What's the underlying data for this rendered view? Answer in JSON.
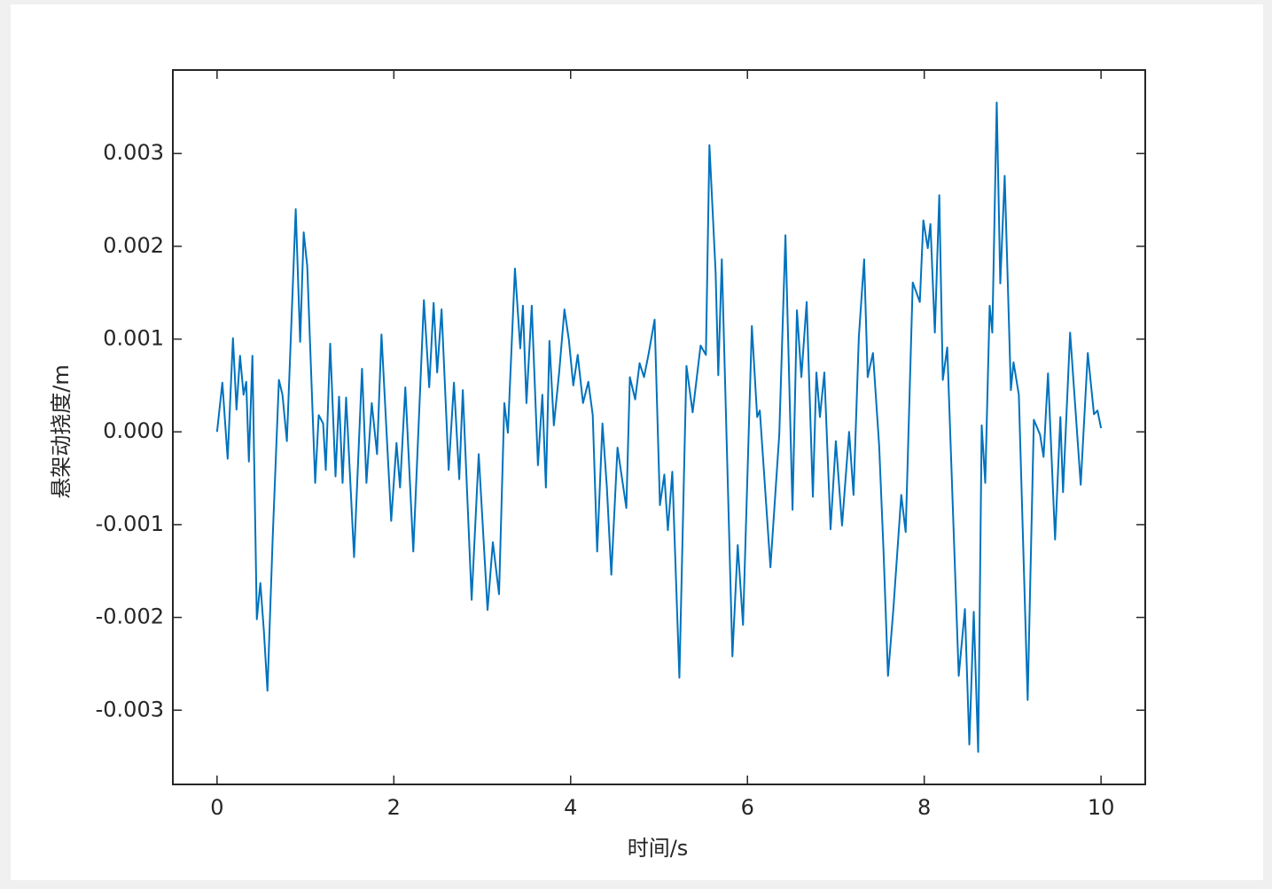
{
  "chart_data": {
    "type": "line",
    "xlabel": "时间/s",
    "ylabel": "悬架动挠度/m",
    "color": "#0072bd",
    "box": true,
    "xlim": [
      -0.5,
      10.5
    ],
    "xticks": [
      0,
      2,
      4,
      6,
      8,
      10
    ],
    "ylim": [
      -0.0038,
      0.0039
    ],
    "yticks": [
      -0.003,
      -0.002,
      -0.001,
      {
        "value": 0,
        "label": "0.000"
      },
      0.001,
      0.002,
      0.003
    ],
    "x": [
      0,
      0.06,
      0.12,
      0.18,
      0.22,
      0.26,
      0.3,
      0.33,
      0.36,
      0.4,
      0.45,
      0.49,
      0.53,
      0.57,
      0.63,
      0.7,
      0.74,
      0.79,
      0.89,
      0.94,
      0.98,
      1.02,
      1.11,
      1.15,
      1.2,
      1.23,
      1.28,
      1.34,
      1.38,
      1.42,
      1.46,
      1.55,
      1.64,
      1.69,
      1.75,
      1.81,
      1.86,
      1.97,
      2.03,
      2.07,
      2.13,
      2.22,
      2.34,
      2.4,
      2.45,
      2.49,
      2.54,
      2.62,
      2.68,
      2.74,
      2.78,
      2.88,
      2.96,
      3.06,
      3.12,
      3.19,
      3.25,
      3.29,
      3.37,
      3.43,
      3.46,
      3.5,
      3.56,
      3.63,
      3.68,
      3.72,
      3.76,
      3.81,
      3.87,
      3.93,
      3.98,
      4.03,
      4.08,
      4.14,
      4.2,
      4.25,
      4.3,
      4.36,
      4.41,
      4.46,
      4.53,
      4.63,
      4.67,
      4.73,
      4.78,
      4.83,
      4.88,
      4.95,
      5.01,
      5.06,
      5.1,
      5.15,
      5.23,
      5.31,
      5.38,
      5.47,
      5.53,
      5.57,
      5.64,
      5.67,
      5.71,
      5.83,
      5.89,
      5.95,
      6.05,
      6.11,
      6.14,
      6.26,
      6.36,
      6.43,
      6.51,
      6.56,
      6.61,
      6.67,
      6.74,
      6.78,
      6.82,
      6.87,
      6.94,
      7.0,
      7.07,
      7.15,
      7.2,
      7.26,
      7.32,
      7.36,
      7.42,
      7.49,
      7.54,
      7.59,
      7.65,
      7.74,
      7.79,
      7.87,
      7.95,
      7.99,
      8.04,
      8.07,
      8.12,
      8.17,
      8.21,
      8.26,
      8.39,
      8.46,
      8.51,
      8.56,
      8.61,
      8.65,
      8.69,
      8.74,
      8.77,
      8.82,
      8.86,
      8.91,
      8.98,
      9.01,
      9.07,
      9.17,
      9.24,
      9.31,
      9.35,
      9.4,
      9.48,
      9.54,
      9.57,
      9.65,
      9.77,
      9.85,
      9.92,
      9.96,
      10.0
    ],
    "values": [
      0,
      0.00053,
      -0.00029,
      0.00101,
      0.00024,
      0.00082,
      0.0004,
      0.00054,
      -0.00032,
      0.00082,
      -0.00202,
      -0.00163,
      -0.00215,
      -0.00279,
      -0.00113,
      0.00056,
      0.0004,
      -0.0001,
      0.0024,
      0.00097,
      0.00215,
      0.00179,
      -0.00055,
      0.00018,
      9e-05,
      -0.00041,
      0.00095,
      -0.00048,
      0.00038,
      -0.00055,
      0.00037,
      -0.00135,
      0.00068,
      -0.00055,
      0.00031,
      -0.00024,
      0.00105,
      -0.00096,
      -0.00012,
      -0.0006,
      0.00048,
      -0.00129,
      0.00142,
      0.00048,
      0.00139,
      0.00064,
      0.00132,
      -0.00041,
      0.00053,
      -0.00051,
      0.00045,
      -0.00181,
      -0.00024,
      -0.00192,
      -0.00119,
      -0.00175,
      0.00031,
      -1e-05,
      0.00176,
      0.0009,
      0.00136,
      0.00031,
      0.00136,
      -0.00036,
      0.0004,
      -0.0006,
      0.00098,
      7e-05,
      0.00064,
      0.00132,
      0.00099,
      0.0005,
      0.00083,
      0.00031,
      0.00054,
      0.00018,
      -0.00129,
      9e-05,
      -0.0006,
      -0.00154,
      -0.00017,
      -0.00082,
      0.00059,
      0.00035,
      0.00074,
      0.00059,
      0.00083,
      0.00121,
      -0.00079,
      -0.00046,
      -0.00106,
      -0.00043,
      -0.00265,
      0.00071,
      0.00021,
      0.00093,
      0.00083,
      0.00309,
      0.00172,
      0.00061,
      0.00186,
      -0.00242,
      -0.00122,
      -0.00208,
      0.00114,
      0.00016,
      0.00023,
      -0.00146,
      -3e-05,
      0.00212,
      -0.00084,
      0.00131,
      0.00059,
      0.0014,
      -0.0007,
      0.00064,
      0.00016,
      0.00064,
      -0.00105,
      -0.0001,
      -0.00101,
      0,
      -0.00068,
      0.00102,
      0.00186,
      0.00059,
      0.00085,
      -0.00015,
      -0.0013,
      -0.00263,
      -0.00192,
      -0.00068,
      -0.00108,
      0.00161,
      0.0014,
      0.00228,
      0.00198,
      0.00224,
      0.00107,
      0.00255,
      0.00056,
      0.00091,
      -0.00263,
      -0.00191,
      -0.00337,
      -0.00194,
      -0.00345,
      7e-05,
      -0.00055,
      0.00136,
      0.00107,
      0.00355,
      0.0016,
      0.00276,
      0.00045,
      0.00075,
      0.0004,
      -0.00289,
      0.00013,
      -3e-05,
      -0.00027,
      0.00063,
      -0.00116,
      0.00016,
      -0.00065,
      0.00107,
      -0.00057,
      0.00085,
      0.00019,
      0.00023,
      4e-05
    ]
  }
}
